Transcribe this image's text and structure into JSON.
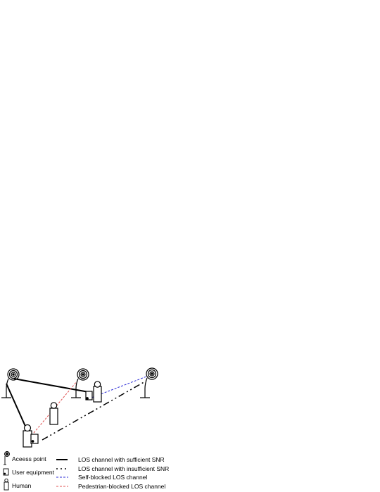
{
  "legend": {
    "access_point": "Aceess point",
    "user_equipment": "User equipment",
    "human": "Human",
    "los_sufficient": "LOS channel with sufficient SNR",
    "los_insufficient": "LOS channel with insufficient SNR",
    "self_blocked": "Self-blocked LOS channel",
    "pedestrian_blocked": "Pedestrian-blocked LOS channel"
  },
  "colors": {
    "line": "#000000",
    "self_blocked": "#2b2bd6",
    "pedestrian_blocked": "#e05050"
  },
  "icons": [
    "access-point-icon",
    "user-equipment-icon",
    "human-icon"
  ]
}
